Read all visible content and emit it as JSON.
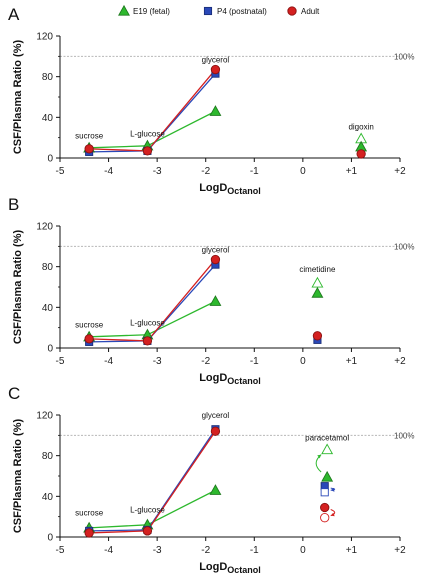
{
  "legend": [
    {
      "name": "E19 (fetal)",
      "color": "#2db82d",
      "marker": "triangle"
    },
    {
      "name": "P4 (postnatal)",
      "color": "#2a48b8",
      "marker": "square"
    },
    {
      "name": "Adult",
      "color": "#d42020",
      "marker": "circle"
    }
  ],
  "shared_text": {
    "ylabel": "CSF/Plasma Ratio (%)",
    "xlabel_main": "LogD",
    "xlabel_sub": "Octanol",
    "ref_label": "100%",
    "xticks": [
      "-5",
      "-4",
      "-3",
      "-2",
      "-1",
      "0",
      "+1",
      "+2"
    ],
    "yticks": [
      "0",
      "40",
      "80",
      "120"
    ]
  },
  "chart_data": [
    {
      "panel": "A",
      "type": "line",
      "xlim": [
        -5,
        2
      ],
      "ylim": [
        0,
        120
      ],
      "ref_line": 100,
      "x": [
        -4.4,
        -3.2,
        -1.8
      ],
      "series": [
        {
          "name": "E19 (fetal)",
          "values": [
            10,
            12,
            46
          ]
        },
        {
          "name": "P4 (postnatal)",
          "values": [
            6,
            7,
            83
          ]
        },
        {
          "name": "Adult",
          "values": [
            9,
            7,
            87
          ]
        }
      ],
      "labels": [
        {
          "text": "sucrose",
          "x": -4.4,
          "y": 19
        },
        {
          "text": "L-glucose",
          "x": -3.2,
          "y": 21
        },
        {
          "text": "glycerol",
          "x": -1.8,
          "y": 94
        },
        {
          "text": "digoxin",
          "x": 1.2,
          "y": 28
        }
      ],
      "extra_points": [
        {
          "series": "E19 (fetal)",
          "x": 1.2,
          "y": 19,
          "filled": false
        },
        {
          "series": "E19 (fetal)",
          "x": 1.2,
          "y": 11,
          "filled": true
        },
        {
          "series": "Adult",
          "x": 1.2,
          "y": 4,
          "filled": true
        }
      ]
    },
    {
      "panel": "B",
      "type": "line",
      "xlim": [
        -5,
        2
      ],
      "ylim": [
        0,
        120
      ],
      "ref_line": 100,
      "x": [
        -4.4,
        -3.2,
        -1.8
      ],
      "series": [
        {
          "name": "E19 (fetal)",
          "values": [
            11,
            13,
            46
          ]
        },
        {
          "name": "P4 (postnatal)",
          "values": [
            6,
            7,
            82
          ]
        },
        {
          "name": "Adult",
          "values": [
            9,
            7,
            87
          ]
        }
      ],
      "labels": [
        {
          "text": "sucrose",
          "x": -4.4,
          "y": 20
        },
        {
          "text": "L-glucose",
          "x": -3.2,
          "y": 22
        },
        {
          "text": "glycerol",
          "x": -1.8,
          "y": 94
        },
        {
          "text": "cimetidine",
          "x": 0.3,
          "y": 75
        }
      ],
      "extra_points": [
        {
          "series": "E19 (fetal)",
          "x": 0.3,
          "y": 64,
          "filled": false
        },
        {
          "series": "E19 (fetal)",
          "x": 0.3,
          "y": 54,
          "filled": true
        },
        {
          "series": "P4 (postnatal)",
          "x": 0.3,
          "y": 8,
          "filled": true
        },
        {
          "series": "Adult",
          "x": 0.3,
          "y": 12,
          "filled": true
        }
      ]
    },
    {
      "panel": "C",
      "type": "line",
      "xlim": [
        -5,
        2
      ],
      "ylim": [
        0,
        120
      ],
      "ref_line": 100,
      "x": [
        -4.4,
        -3.2,
        -1.8
      ],
      "series": [
        {
          "name": "E19 (fetal)",
          "values": [
            9,
            12,
            46
          ]
        },
        {
          "name": "P4 (postnatal)",
          "values": [
            6,
            7,
            106
          ]
        },
        {
          "name": "Adult",
          "values": [
            4,
            6,
            104
          ]
        }
      ],
      "labels": [
        {
          "text": "sucrose",
          "x": -4.4,
          "y": 21
        },
        {
          "text": "L-glucose",
          "x": -3.2,
          "y": 24
        },
        {
          "text": "glycerol",
          "x": -1.8,
          "y": 117
        },
        {
          "text": "paracetamol",
          "x": 0.5,
          "y": 95
        }
      ],
      "extra_points": [
        {
          "series": "E19 (fetal)",
          "x": 0.5,
          "y": 86,
          "filled": false
        },
        {
          "series": "E19 (fetal)",
          "x": 0.5,
          "y": 59,
          "filled": true
        },
        {
          "series": "P4 (postnatal)",
          "x": 0.45,
          "y": 50,
          "filled": true
        },
        {
          "series": "P4 (postnatal)",
          "x": 0.45,
          "y": 44,
          "filled": false
        },
        {
          "series": "Adult",
          "x": 0.45,
          "y": 29,
          "filled": true
        },
        {
          "series": "Adult",
          "x": 0.45,
          "y": 19,
          "filled": false
        }
      ]
    }
  ]
}
